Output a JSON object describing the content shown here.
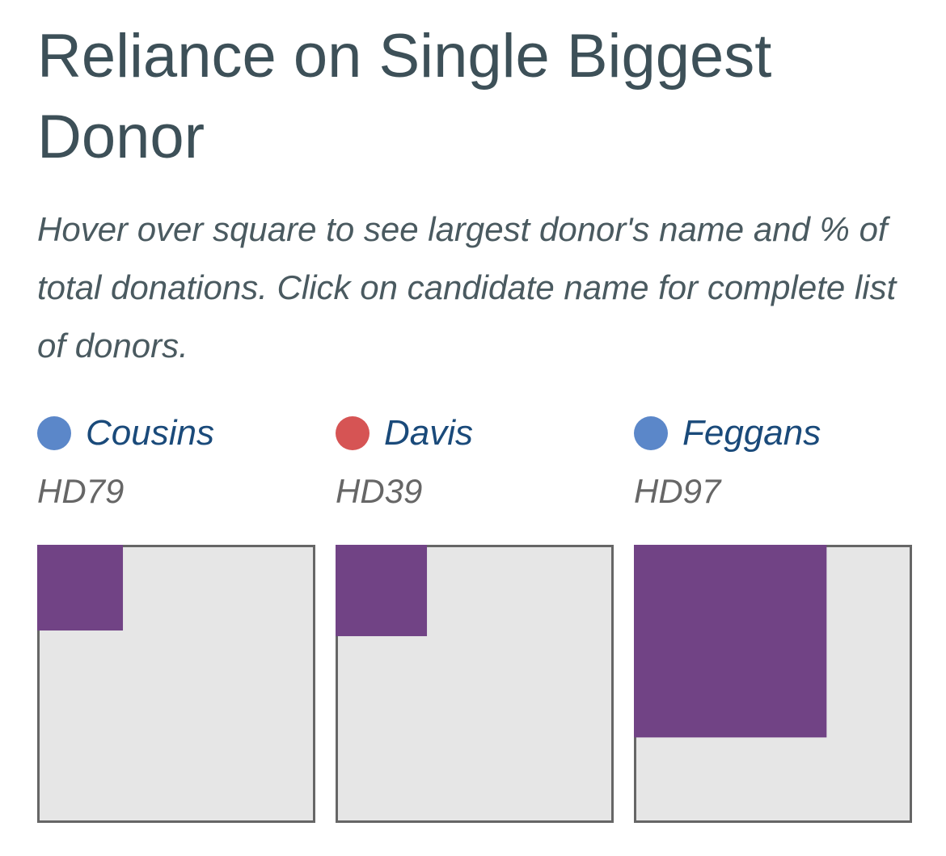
{
  "header": {
    "title": "Reliance on Single Biggest Donor",
    "subtitle": "Hover over square to see largest donor's name and % of total donations. Click on candidate name for complete list of donors."
  },
  "colors": {
    "democrat": "#5b87c9",
    "republican": "#d65454",
    "largest_donor_fill": "#714385",
    "square_fill": "#e6e6e6",
    "square_border": "#666666"
  },
  "chart_data": {
    "type": "nested-square",
    "title": "Reliance on Single Biggest Donor",
    "subtitle": "Hover over square to see largest donor's name and % of total donations. Click on candidate name for complete list of donors.",
    "value_meaning": "largest donor share of total donations (area fraction)",
    "candidates": [
      {
        "name": "Cousins",
        "district": "HD79",
        "party_color": "#5b87c9",
        "largest_donor_share": 0.095
      },
      {
        "name": "Davis",
        "district": "HD39",
        "party_color": "#d65454",
        "largest_donor_share": 0.108
      },
      {
        "name": "Feggans",
        "district": "HD97",
        "party_color": "#5b87c9",
        "largest_donor_share": 0.48
      }
    ]
  }
}
